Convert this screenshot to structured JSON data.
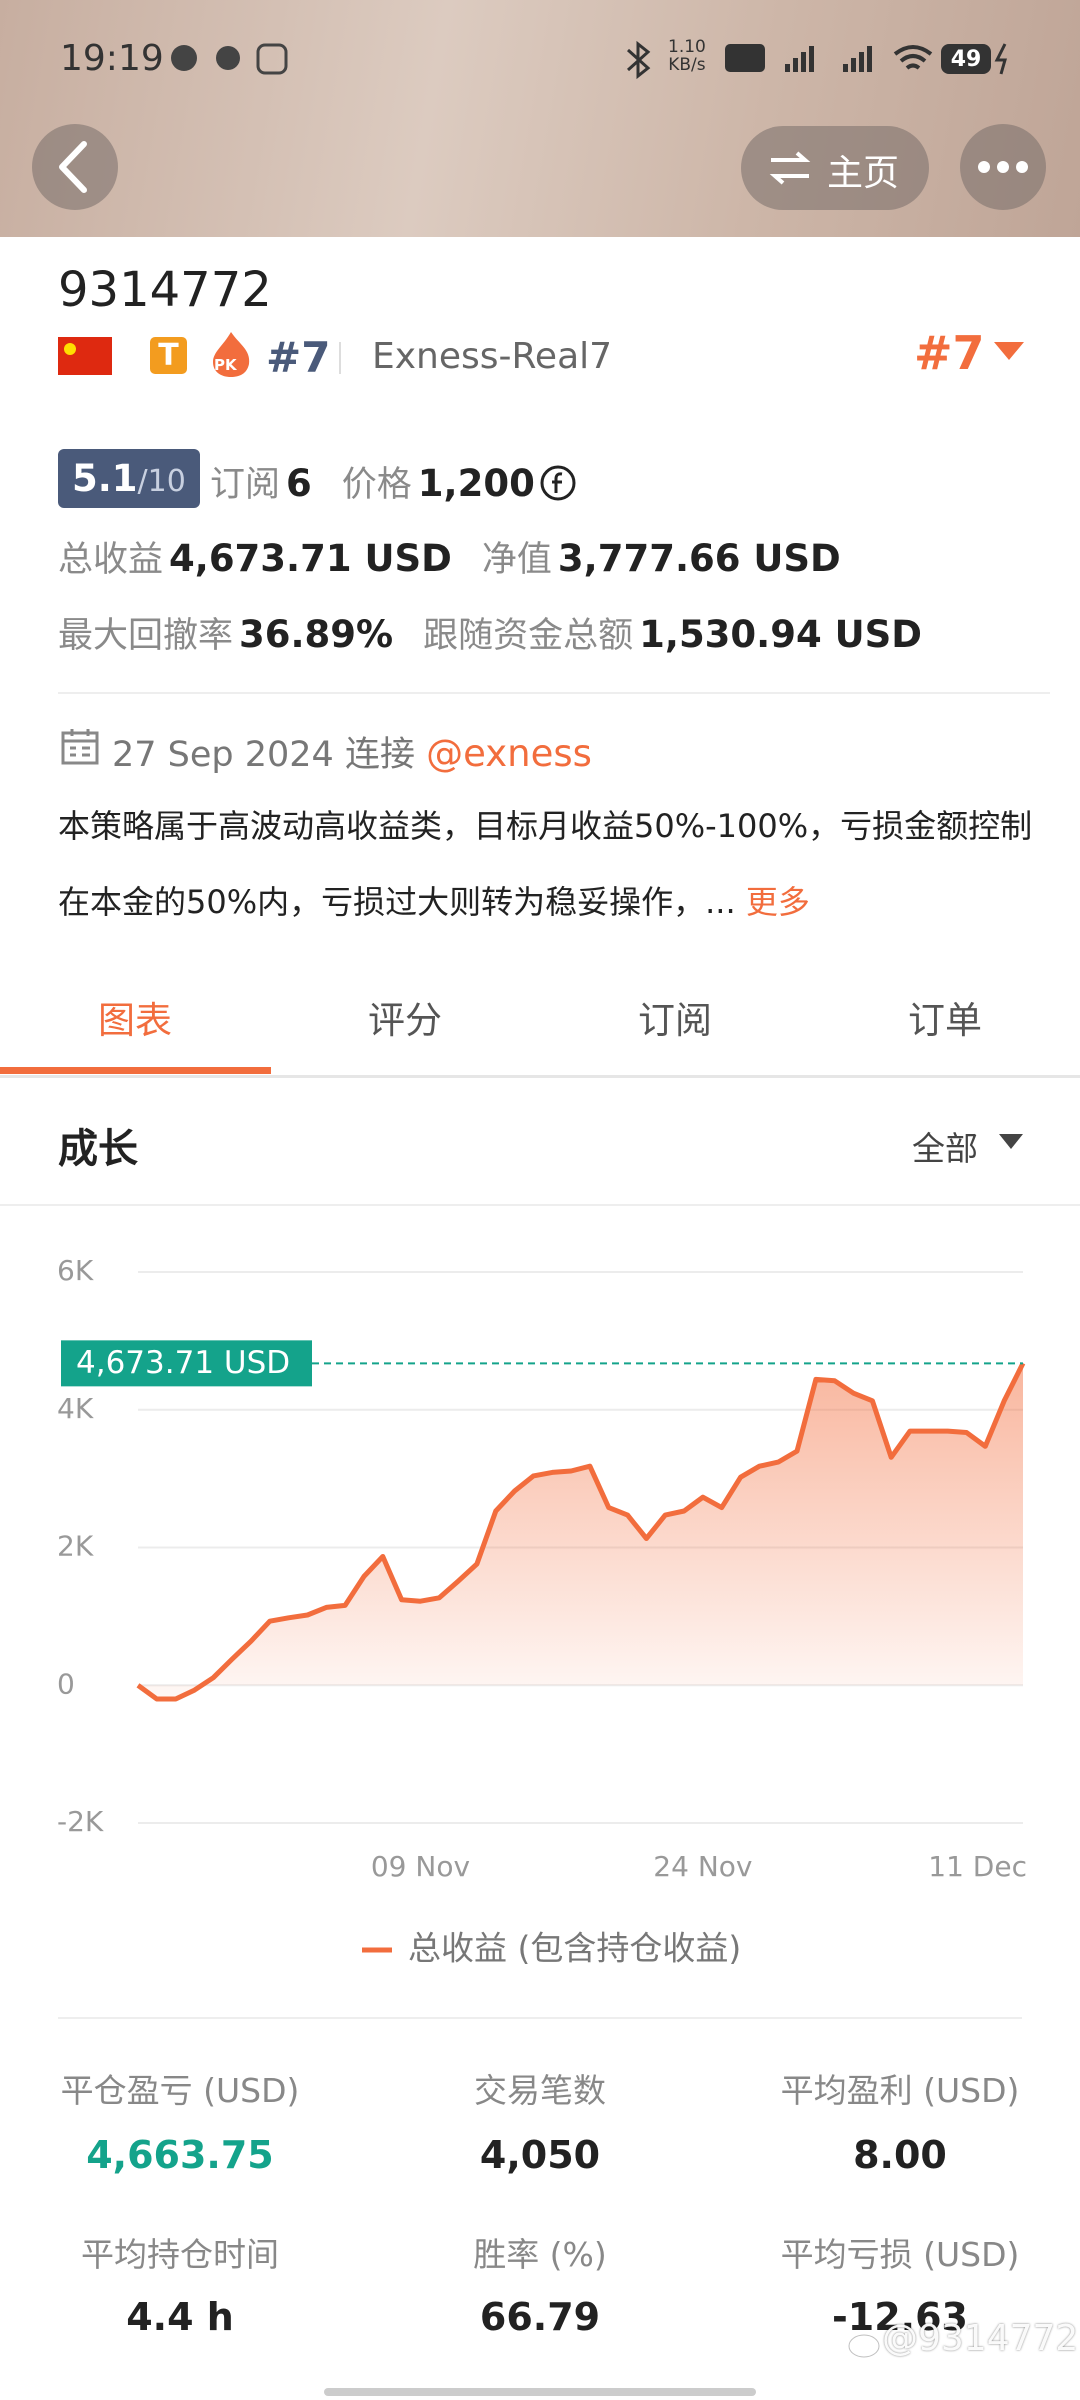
{
  "status_bar": {
    "time": "19:19",
    "net_speed": "1.10",
    "net_speed_unit": "KB/s",
    "battery": "49"
  },
  "header": {
    "home_button": "主页"
  },
  "profile": {
    "id": "9314772",
    "badge_t": "T",
    "badge_pk": "PK",
    "rank": "#7",
    "broker": "Exness-Real7",
    "rank_right": "#7",
    "rating": "5.1",
    "rating_max": "/10",
    "subscribe_label": "订阅",
    "subscribe_count": "6",
    "price_label": "价格",
    "price": "1,200"
  },
  "metrics": [
    {
      "label": "总收益",
      "value": "4,673.71 USD"
    },
    {
      "label": "净值",
      "value": "3,777.66 USD"
    },
    {
      "label": "最大回撤率",
      "value": "36.89%"
    },
    {
      "label": "跟随资金总额",
      "value": "1,530.94 USD"
    }
  ],
  "connection": {
    "date": "27 Sep 2024",
    "text": "连接",
    "handle": "@exness"
  },
  "description": {
    "text": "本策略属于高波动高收益类，目标月收益50%-100%，亏损金额控制在本金的50%内，亏损过大则转为稳妥操作，...",
    "more": "更多"
  },
  "tabs": [
    "图表",
    "评分",
    "订阅",
    "订单"
  ],
  "section": {
    "title": "成长",
    "range": "全部"
  },
  "chart_data": {
    "type": "area",
    "categories": [
      null,
      null,
      null,
      null,
      null,
      null,
      null,
      null,
      null,
      null,
      null,
      null,
      null,
      null,
      null,
      "09 Nov",
      null,
      null,
      null,
      null,
      null,
      null,
      null,
      null,
      null,
      null,
      null,
      null,
      null,
      null,
      "24 Nov",
      null,
      null,
      null,
      null,
      null,
      null,
      null,
      null,
      null,
      null,
      null,
      null,
      null,
      null,
      null,
      null,
      "11 Dec"
    ],
    "series": [
      {
        "name": "总收益 (包含持仓收益)",
        "color": "#f26d3d",
        "values": [
          0,
          -200,
          -200,
          -70,
          110,
          380,
          640,
          930,
          980,
          1020,
          1130,
          1160,
          1580,
          1870,
          1240,
          1220,
          1270,
          1510,
          1760,
          2530,
          2820,
          3040,
          3090,
          3110,
          3180,
          2580,
          2470,
          2130,
          2470,
          2530,
          2730,
          2580,
          3020,
          3180,
          3240,
          3400,
          4440,
          4420,
          4240,
          4130,
          3310,
          3690,
          3690,
          3690,
          3670,
          3470,
          4130,
          4673.71
        ]
      }
    ],
    "ylim": [
      -2000,
      6000
    ],
    "yticks": [
      {
        "value": -2000,
        "label": "-2K"
      },
      0,
      {
        "value": 2000,
        "label": "2K"
      },
      {
        "value": 4000,
        "label": "4K"
      },
      {
        "value": 6000,
        "label": "6K"
      }
    ],
    "grid": true,
    "reference_line": {
      "value": 4673.71,
      "label": "4,673.71 USD",
      "color": "#14a38b"
    }
  },
  "stats": [
    {
      "label": "平仓盈亏 (USD)",
      "value": "4,663.75"
    },
    {
      "label": "交易笔数",
      "value": "4,050"
    },
    {
      "label": "平均盈利 (USD)",
      "value": "8.00"
    },
    {
      "label": "平均持仓时间",
      "value": "4.4 h"
    },
    {
      "label": "胜率 (%)",
      "value": "66.79"
    },
    {
      "label": "平均亏损 (USD)",
      "value": "-12.63"
    }
  ],
  "watermark": "@9314772"
}
